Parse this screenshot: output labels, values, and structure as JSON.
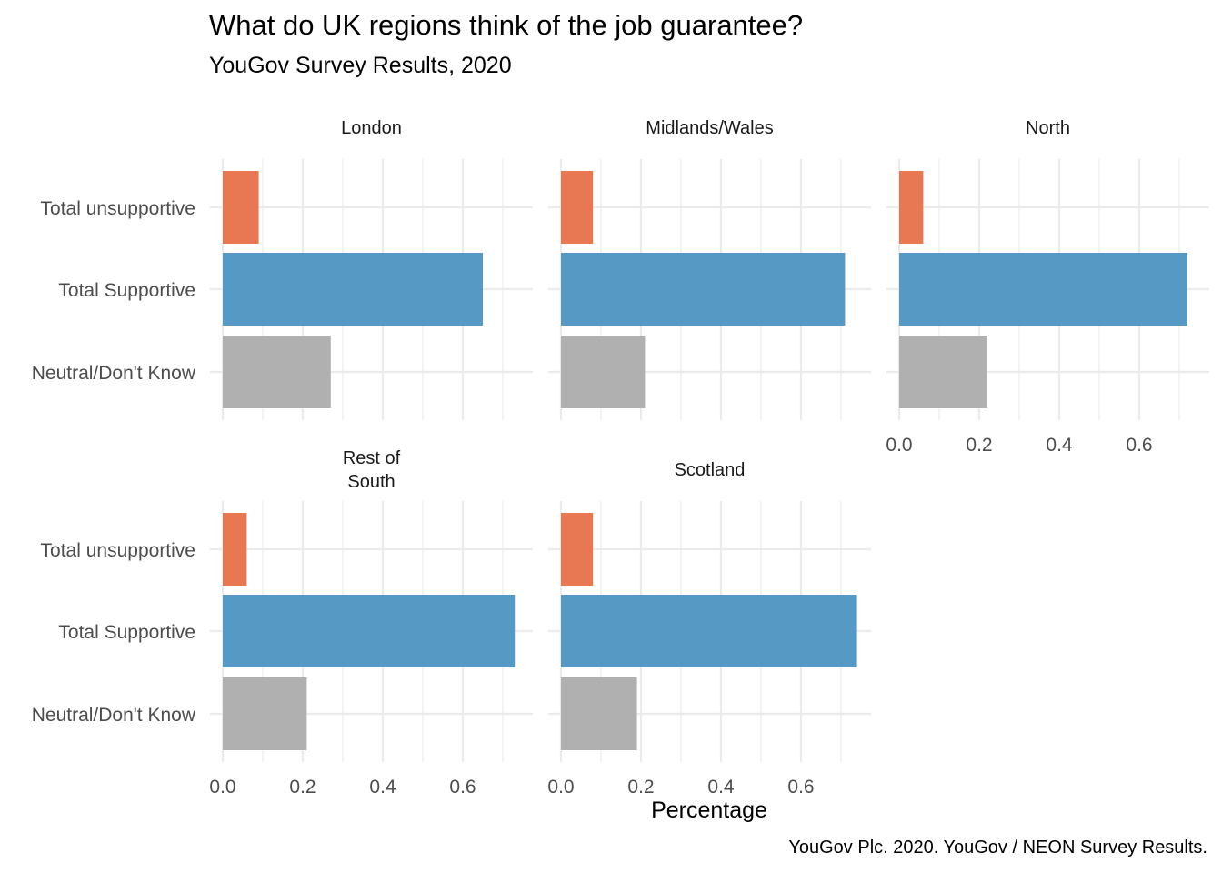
{
  "chart_data": {
    "type": "bar",
    "orientation": "horizontal",
    "title": "What do UK regions think of the job guarantee?",
    "subtitle": "YouGov Survey Results, 2020",
    "xlabel": "Percentage",
    "ylabel": "",
    "caption": "YouGov Plc. 2020. YouGov / NEON Survey Results.",
    "xlim": [
      0,
      0.75
    ],
    "x_ticks": [
      "0.0",
      "0.2",
      "0.4",
      "0.6"
    ],
    "categories": [
      "Total unsupportive",
      "Total Supportive",
      "Neutral/Don't Know"
    ],
    "colors": {
      "Total unsupportive": "#E87753",
      "Total Supportive": "#5699C5",
      "Neutral/Don't Know": "#B0B0B0"
    },
    "grid": true,
    "legend": "none",
    "facets": [
      {
        "label_lines": [
          "London"
        ],
        "values": [
          0.09,
          0.65,
          0.27
        ]
      },
      {
        "label_lines": [
          "Midlands/Wales"
        ],
        "values": [
          0.08,
          0.71,
          0.21
        ]
      },
      {
        "label_lines": [
          "North"
        ],
        "values": [
          0.06,
          0.72,
          0.22
        ]
      },
      {
        "label_lines": [
          "Rest of",
          "South"
        ],
        "values": [
          0.06,
          0.73,
          0.21
        ]
      },
      {
        "label_lines": [
          "Scotland"
        ],
        "values": [
          0.08,
          0.74,
          0.19
        ]
      }
    ]
  }
}
